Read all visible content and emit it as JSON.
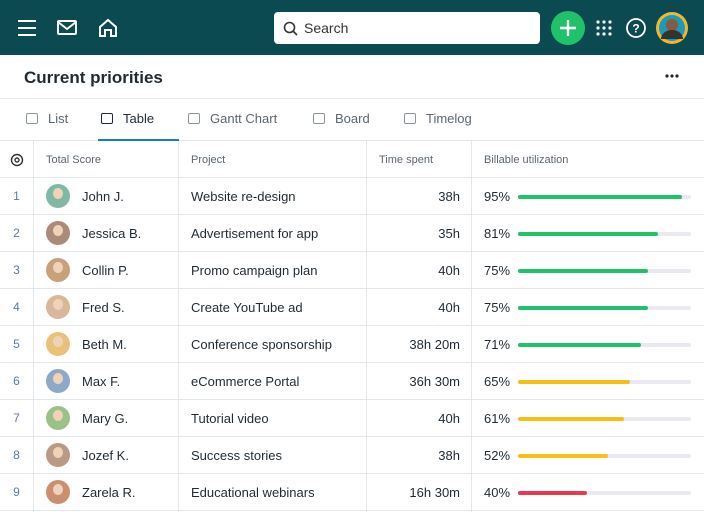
{
  "header": {
    "search_placeholder": "Search"
  },
  "page": {
    "title": "Current priorities"
  },
  "tabs": {
    "items": [
      "List",
      "Table",
      "Gantt Chart",
      "Board",
      "Timelog"
    ],
    "active": 1
  },
  "table": {
    "columns": [
      "Total Score",
      "Project",
      "Time spent",
      "Billable utilization"
    ],
    "rows": [
      {
        "index": 1,
        "name": "John J.",
        "project": "Website re-design",
        "time": "38h",
        "utilization": 95,
        "utilization_label": "95%",
        "bar_color": "#1fc26b",
        "avatar_color": "#7fb8a4"
      },
      {
        "index": 2,
        "name": "Jessica B.",
        "project": "Advertisement for app",
        "time": "35h",
        "utilization": 81,
        "utilization_label": "81%",
        "bar_color": "#1fc26b",
        "avatar_color": "#a88b7a"
      },
      {
        "index": 3,
        "name": "Collin P.",
        "project": "Promo campaign plan",
        "time": "40h",
        "utilization": 75,
        "utilization_label": "75%",
        "bar_color": "#1fc26b",
        "avatar_color": "#c7a07c"
      },
      {
        "index": 4,
        "name": "Fred S.",
        "project": "Create YouTube ad",
        "time": "40h",
        "utilization": 75,
        "utilization_label": "75%",
        "bar_color": "#1fc26b",
        "avatar_color": "#d9b79a"
      },
      {
        "index": 5,
        "name": "Beth M.",
        "project": "Conference sponsorship",
        "time": "38h 20m",
        "utilization": 71,
        "utilization_label": "71%",
        "bar_color": "#1fc26b",
        "avatar_color": "#e8c27a"
      },
      {
        "index": 6,
        "name": "Max F.",
        "project": "eCommerce Portal",
        "time": "36h 30m",
        "utilization": 65,
        "utilization_label": "65%",
        "bar_color": "#f7be16",
        "avatar_color": "#8fa8c8"
      },
      {
        "index": 7,
        "name": "Mary G.",
        "project": "Tutorial video",
        "time": "40h",
        "utilization": 61,
        "utilization_label": "61%",
        "bar_color": "#f7be16",
        "avatar_color": "#9cc08a"
      },
      {
        "index": 8,
        "name": "Jozef K.",
        "project": "Success stories",
        "time": "38h",
        "utilization": 52,
        "utilization_label": "52%",
        "bar_color": "#f7be16",
        "avatar_color": "#b89a86"
      },
      {
        "index": 9,
        "name": "Zarela R.",
        "project": "Educational webinars",
        "time": "16h 30m",
        "utilization": 40,
        "utilization_label": "40%",
        "bar_color": "#e83a4c",
        "avatar_color": "#c98f6e"
      }
    ]
  }
}
